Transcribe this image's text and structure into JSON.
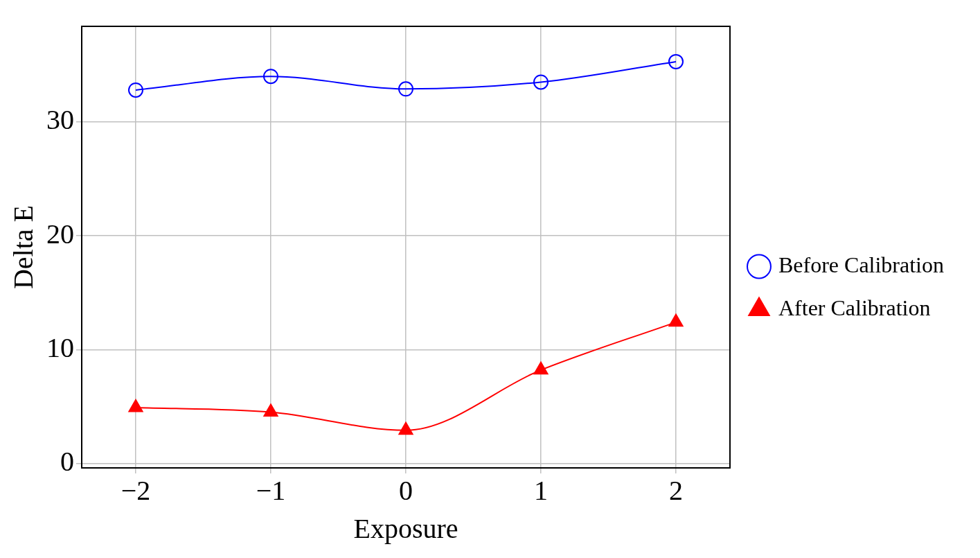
{
  "chart_data": {
    "type": "line",
    "xlabel": "Exposure",
    "ylabel": "Delta E",
    "x": [
      -2,
      -1,
      0,
      1,
      2
    ],
    "xlim": [
      -2.4,
      2.4
    ],
    "xticks": [
      -2,
      -1,
      0,
      1,
      2
    ],
    "ylim": [
      -0.4,
      38.4
    ],
    "yticks": [
      0,
      10,
      20,
      30
    ],
    "grid": true,
    "legend": "right",
    "series": [
      {
        "name": "Before Calibration",
        "color": "#0000ff",
        "marker": "circle",
        "values": [
          32.8,
          34.0,
          32.9,
          33.5,
          35.3
        ]
      },
      {
        "name": "After Calibration",
        "color": "#ff0000",
        "marker": "triangle",
        "values": [
          4.9,
          4.5,
          2.9,
          8.2,
          12.4
        ]
      }
    ]
  }
}
